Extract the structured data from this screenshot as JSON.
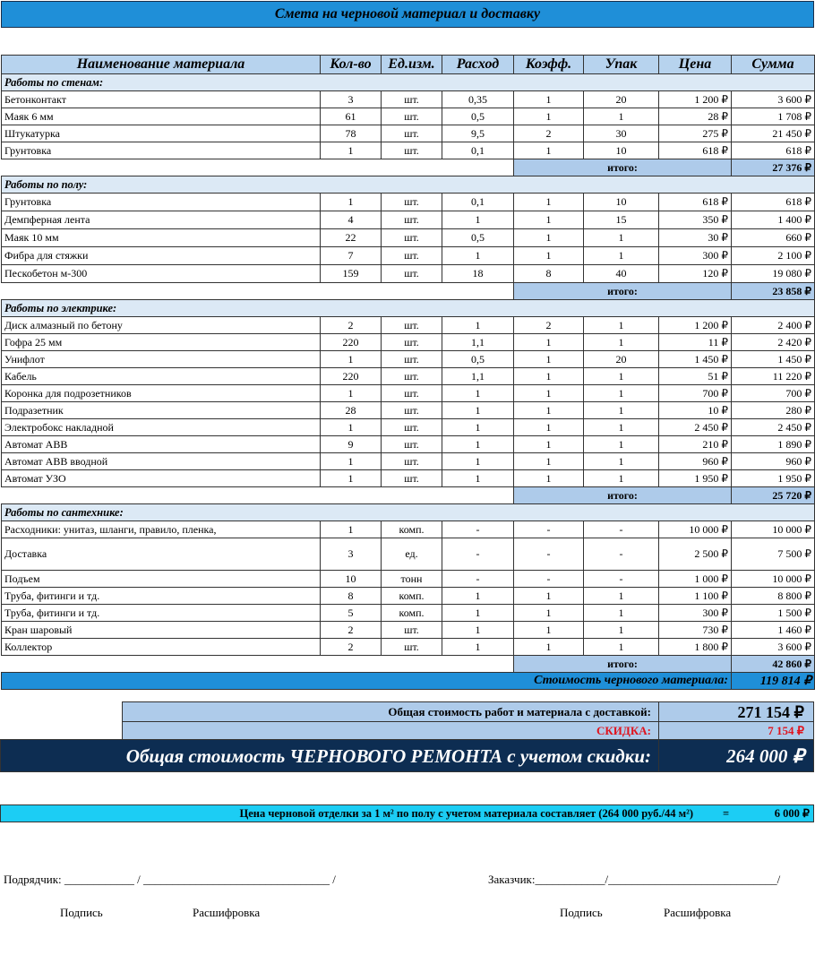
{
  "title": "Смета на черновой материал и доставку",
  "headers": [
    "Наименование материала",
    "Кол-во",
    "Ед.изм.",
    "Расход",
    "Коэфф.",
    "Упак",
    "Цена",
    "Сумма"
  ],
  "sections": [
    {
      "title": "Работы по стенам:",
      "rows": [
        [
          "Бетонконтакт",
          "3",
          "шт.",
          "0,35",
          "1",
          "20",
          "1 200 ₽",
          "3 600 ₽"
        ],
        [
          "Маяк 6 мм",
          "61",
          "шт.",
          "0,5",
          "1",
          "1",
          "28 ₽",
          "1 708 ₽"
        ],
        [
          "Штукатурка",
          "78",
          "шт.",
          "9,5",
          "2",
          "30",
          "275 ₽",
          "21 450 ₽"
        ],
        [
          "Грунтовка",
          "1",
          "шт.",
          "0,1",
          "1",
          "10",
          "618 ₽",
          "618 ₽"
        ]
      ],
      "total_label": "итого:",
      "total": "27 376 ₽"
    },
    {
      "title": "Работы по полу:",
      "rows": [
        [
          "Грунтовка",
          "1",
          "шт.",
          "0,1",
          "1",
          "10",
          "618 ₽",
          "618 ₽"
        ],
        [
          "Демпферная лента",
          "4",
          "шт.",
          "1",
          "1",
          "15",
          "350 ₽",
          "1 400 ₽"
        ],
        [
          "Маяк 10 мм",
          "22",
          "шт.",
          "0,5",
          "1",
          "1",
          "30 ₽",
          "660 ₽"
        ],
        [
          "Фибра для стяжки",
          "7",
          "шт.",
          "1",
          "1",
          "1",
          "300 ₽",
          "2 100 ₽"
        ],
        [
          "Пескобетон м-300",
          "159",
          "шт.",
          "18",
          "8",
          "40",
          "120 ₽",
          "19 080 ₽"
        ]
      ],
      "total_label": "итого:",
      "total": "23 858 ₽"
    },
    {
      "title": "Работы по электрике:",
      "rows": [
        [
          "Диск алмазный по бетону",
          "2",
          "шт.",
          "1",
          "2",
          "1",
          "1 200 ₽",
          "2 400 ₽"
        ],
        [
          "Гофра 25 мм",
          "220",
          "шт.",
          "1,1",
          "1",
          "1",
          "11 ₽",
          "2 420 ₽"
        ],
        [
          "Унифлот",
          "1",
          "шт.",
          "0,5",
          "1",
          "20",
          "1 450 ₽",
          "1 450 ₽"
        ],
        [
          "Кабель",
          "220",
          "шт.",
          "1,1",
          "1",
          "1",
          "51 ₽",
          "11 220 ₽"
        ],
        [
          "Коронка для подрозетников",
          "1",
          "шт.",
          "1",
          "1",
          "1",
          "700 ₽",
          "700 ₽"
        ],
        [
          "Подразетник",
          "28",
          "шт.",
          "1",
          "1",
          "1",
          "10 ₽",
          "280 ₽"
        ],
        [
          "Электробокс накладной",
          "1",
          "шт.",
          "1",
          "1",
          "1",
          "2 450 ₽",
          "2 450 ₽"
        ],
        [
          "Автомат АВВ",
          "9",
          "шт.",
          "1",
          "1",
          "1",
          "210 ₽",
          "1 890 ₽"
        ],
        [
          "Автомат АВВ вводной",
          "1",
          "шт.",
          "1",
          "1",
          "1",
          "960 ₽",
          "960 ₽"
        ],
        [
          "Автомат УЗО",
          "1",
          "шт.",
          "1",
          "1",
          "1",
          "1 950 ₽",
          "1 950 ₽"
        ]
      ],
      "total_label": "итого:",
      "total": "25 720 ₽"
    },
    {
      "title": "Работы по сантехнике:",
      "rows": [
        [
          "Расходники: унитаз, шланги, правило, пленка,",
          "1",
          "комп.",
          "-",
          "-",
          "-",
          "10 000 ₽",
          "10 000 ₽"
        ],
        [
          "Доставка",
          "3",
          "ед.",
          "-",
          "-",
          "-",
          "2 500 ₽",
          "7 500 ₽"
        ],
        [
          "Подъем",
          "10",
          "тонн",
          "-",
          "-",
          "-",
          "1 000 ₽",
          "10 000 ₽"
        ],
        [
          "Труба, фитинги и тд.",
          "8",
          "комп.",
          "1",
          "1",
          "1",
          "1 100 ₽",
          "8 800 ₽"
        ],
        [
          "Труба, фитинги и тд.",
          "5",
          "комп.",
          "1",
          "1",
          "1",
          "300 ₽",
          "1 500 ₽"
        ],
        [
          "Кран шаровый",
          "2",
          "шт.",
          "1",
          "1",
          "1",
          "730 ₽",
          "1 460 ₽"
        ],
        [
          "Коллектор",
          "2",
          "шт.",
          "1",
          "1",
          "1",
          "1 800 ₽",
          "3 600 ₽"
        ]
      ],
      "total_label": "итого:",
      "total": "42 860 ₽"
    }
  ],
  "material_total_label": "Стоимость чернового материала:",
  "material_total": "119 814 ₽",
  "summary": {
    "total_label": "Общая стоимость работ и материала с доставкой:",
    "total": "271 154 ₽",
    "discount_label": "СКИДКА:",
    "discount": "7 154 ₽",
    "final_label": "Общая стоимость ЧЕРНОВОГО РЕМОНТА с учетом скидки:",
    "final": "264 000 ₽"
  },
  "per_m2": {
    "label": "Цена черновой отделки за 1 м² по полу с учетом материала составляет (264 000 руб./44 м²)",
    "eq": "=",
    "value": "6 000 ₽"
  },
  "signatures": {
    "contractor": "Подрядчик: ____________   / ________________________________ /",
    "customer": "Заказчик:____________/_____________________________/",
    "sign": "Подпись",
    "decode": "Расшифровка"
  },
  "colors": {
    "title_bg": "#1f8fd8",
    "header_bg": "#b7d3ee",
    "section_bg": "#dce9f5",
    "dark_bg": "#0d2d52",
    "cyan_bg": "#1ccdf4",
    "discount": "#e0141e"
  }
}
